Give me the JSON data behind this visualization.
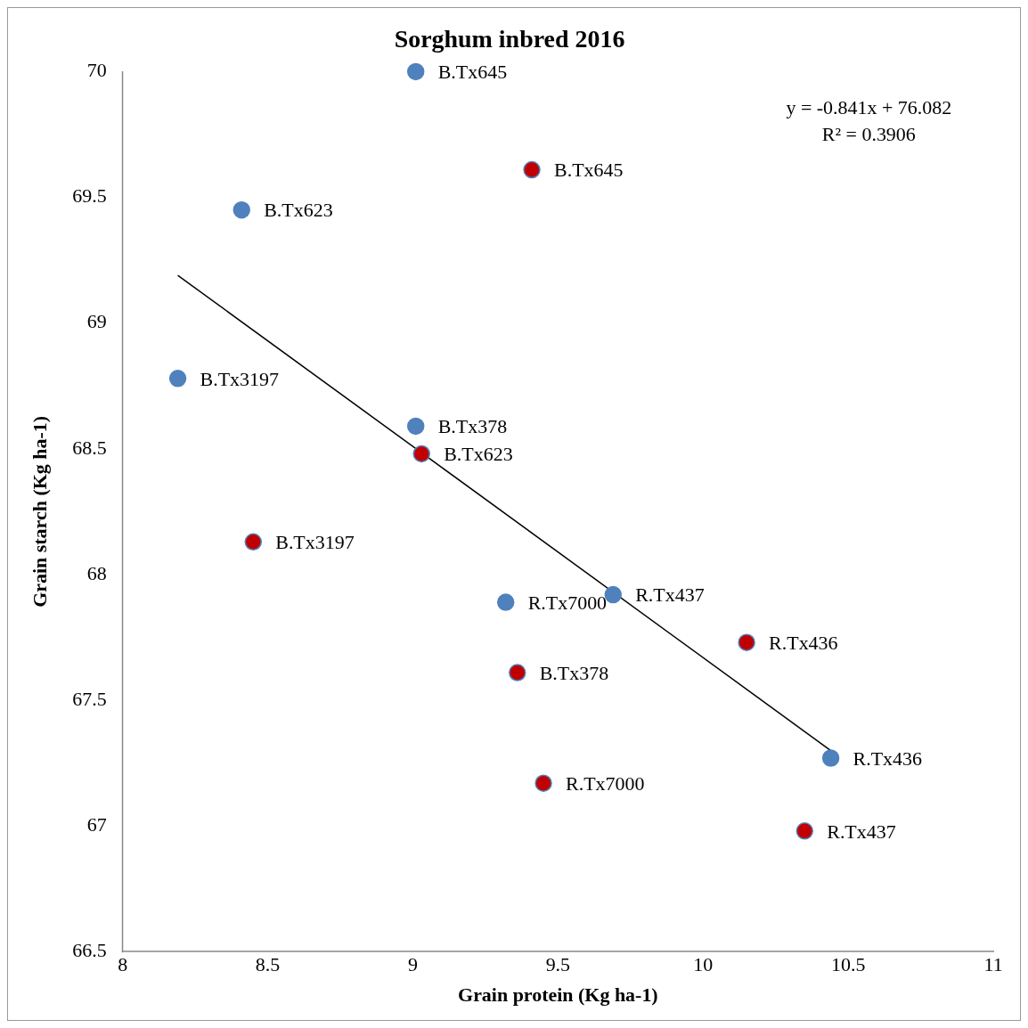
{
  "chart_data": {
    "type": "scatter",
    "title": "Sorghum inbred 2016",
    "xlabel": "Grain protein (Kg ha-1)",
    "ylabel": "Grain starch (Kg ha-1)",
    "xlim": [
      8,
      11
    ],
    "xticks": [
      8,
      8.5,
      9,
      9.5,
      10,
      10.5,
      11
    ],
    "ylim": [
      66.5,
      70
    ],
    "yticks": [
      66.5,
      67,
      67.5,
      68,
      68.5,
      69,
      69.5,
      70
    ],
    "grid": false,
    "legend": false,
    "annotations": [
      "y = -0.841x + 76.082",
      "R² = 0.3906"
    ],
    "series": [
      {
        "color": "#4f81bd",
        "marker": "circle",
        "x": [
          9.01,
          8.41,
          8.19,
          9.01,
          9.32,
          9.69,
          10.44
        ],
        "values": [
          70.0,
          69.45,
          68.78,
          68.59,
          67.89,
          67.92,
          67.27
        ],
        "value_labels": [
          "B.Tx645",
          "B.Tx623",
          "B.Tx3197",
          "B.Tx378",
          "R.Tx7000",
          "R.Tx437",
          "R.Tx436"
        ]
      },
      {
        "color": "#c00000",
        "marker": "circle",
        "x": [
          9.41,
          9.03,
          8.45,
          9.36,
          9.45,
          10.15,
          10.35
        ],
        "values": [
          69.61,
          68.48,
          68.13,
          67.61,
          67.17,
          67.73,
          66.98
        ],
        "value_labels": [
          "B.Tx645",
          "B.Tx623",
          "B.Tx3197",
          "B.Tx378",
          "R.Tx7000",
          "R.Tx436",
          "R.Tx437"
        ]
      },
      {
        "type": "line",
        "color": "#000000",
        "x": [
          8.19,
          10.44
        ],
        "values": [
          69.19,
          67.3
        ]
      }
    ]
  }
}
